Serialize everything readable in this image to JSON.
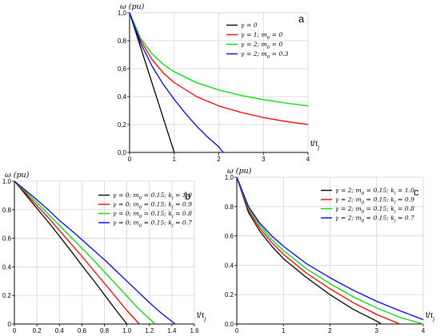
{
  "chart_data": [
    {
      "type": "line",
      "panel_label": "a",
      "ylabel": "ω (pu)",
      "xlabel": "t/τj",
      "xlim": [
        0,
        4
      ],
      "ylim": [
        0,
        1
      ],
      "xticks": [
        "0",
        "1",
        "2",
        "3",
        "4"
      ],
      "yticks": [
        "0,0",
        "0,2",
        "0,4",
        "0,6",
        "0,8",
        "1,0"
      ],
      "legend_position": "top-right",
      "grid": true,
      "series": [
        {
          "name": "γ = 0",
          "color": "#000000",
          "x": [
            0,
            1.0
          ],
          "y": [
            1,
            0
          ]
        },
        {
          "name": "γ = 1; m0 = 0",
          "color": "#ff0000",
          "x": [
            0,
            0.25,
            0.5,
            0.75,
            1,
            1.5,
            2,
            2.5,
            3,
            3.5,
            4
          ],
          "y": [
            1,
            0.8,
            0.667,
            0.571,
            0.5,
            0.4,
            0.333,
            0.286,
            0.25,
            0.222,
            0.2
          ]
        },
        {
          "name": "γ = 2; m0 = 0",
          "color": "#00dd00",
          "x": [
            0,
            0.25,
            0.5,
            0.75,
            1,
            1.5,
            2,
            2.5,
            3,
            3.5,
            4
          ],
          "y": [
            1,
            0.816,
            0.707,
            0.632,
            0.577,
            0.5,
            0.447,
            0.408,
            0.378,
            0.354,
            0.333
          ]
        },
        {
          "name": "γ = 2; m0 = 0.3",
          "color": "#0000ff",
          "x": [
            0,
            0.25,
            0.5,
            0.75,
            1,
            1.25,
            1.5,
            1.75,
            2,
            2.1
          ],
          "y": [
            1,
            0.78,
            0.62,
            0.49,
            0.38,
            0.28,
            0.19,
            0.11,
            0.04,
            0
          ]
        }
      ]
    },
    {
      "type": "line",
      "panel_label": "b",
      "ylabel": "ω (pu)",
      "xlabel": "t/τj",
      "xlim": [
        0,
        1.6
      ],
      "ylim": [
        0,
        1
      ],
      "xticks": [
        "0",
        "0.2",
        "0.4",
        "0.6",
        "0.8",
        "1.0",
        "1.2",
        "1.4",
        "1.6"
      ],
      "yticks": [
        "0",
        "0.2",
        "0.4",
        "0.6",
        "0.8",
        "1.0"
      ],
      "legend_position": "top-right",
      "grid": true,
      "series": [
        {
          "name": "γ = 0; m0 = 0.15; kl = 1.0",
          "color": "#000000",
          "x": [
            0,
            0.1,
            0.2,
            0.3,
            0.4,
            0.5,
            0.6,
            0.7,
            0.8,
            0.9,
            1.0
          ],
          "y": [
            1,
            0.905,
            0.81,
            0.715,
            0.615,
            0.515,
            0.41,
            0.31,
            0.205,
            0.1,
            0
          ]
        },
        {
          "name": "γ = 0; m0 = 0.15; kl = 0.9",
          "color": "#ff0000",
          "x": [
            0,
            0.1,
            0.2,
            0.3,
            0.4,
            0.5,
            0.6,
            0.7,
            0.8,
            0.9,
            1.0,
            1.11
          ],
          "y": [
            1,
            0.915,
            0.83,
            0.745,
            0.655,
            0.565,
            0.475,
            0.38,
            0.285,
            0.19,
            0.095,
            0
          ]
        },
        {
          "name": "γ = 0; m0 = 0.15; kl = 0.8",
          "color": "#00dd00",
          "x": [
            0,
            0.1,
            0.2,
            0.3,
            0.4,
            0.5,
            0.6,
            0.7,
            0.8,
            0.9,
            1.0,
            1.1,
            1.25
          ],
          "y": [
            1,
            0.925,
            0.85,
            0.77,
            0.69,
            0.61,
            0.53,
            0.45,
            0.365,
            0.28,
            0.195,
            0.11,
            0
          ]
        },
        {
          "name": "γ = 0; m0 = 0.15; kl = 0.7",
          "color": "#0000ff",
          "x": [
            0,
            0.1,
            0.2,
            0.3,
            0.4,
            0.5,
            0.6,
            0.7,
            0.8,
            0.9,
            1.0,
            1.1,
            1.2,
            1.3,
            1.43
          ],
          "y": [
            1,
            0.935,
            0.87,
            0.8,
            0.725,
            0.66,
            0.59,
            0.52,
            0.45,
            0.375,
            0.3,
            0.225,
            0.15,
            0.08,
            0
          ]
        }
      ]
    },
    {
      "type": "line",
      "panel_label": "c",
      "ylabel": "ω (pu)",
      "xlabel": "t/τj",
      "xlim": [
        0,
        4
      ],
      "ylim": [
        0,
        1
      ],
      "xticks": [
        "0",
        "1",
        "2",
        "3",
        "4"
      ],
      "yticks": [
        "0.0",
        "0.2",
        "0.4",
        "0.6",
        "0.8",
        "1.0"
      ],
      "legend_position": "top-right",
      "grid": true,
      "series": [
        {
          "name": "γ = 2; m0 = 0.15; kl = 1.0",
          "color": "#000000",
          "x": [
            0,
            0.25,
            0.5,
            0.75,
            1,
            1.5,
            2,
            2.5,
            3,
            3.1
          ],
          "y": [
            1,
            0.76,
            0.63,
            0.53,
            0.445,
            0.315,
            0.2,
            0.1,
            0.02,
            0
          ]
        },
        {
          "name": "γ = 2; m0 = 0.15; kl = 0.9",
          "color": "#ff0000",
          "x": [
            0,
            0.25,
            0.5,
            0.75,
            1,
            1.5,
            2,
            2.5,
            3,
            3.5
          ],
          "y": [
            1,
            0.775,
            0.65,
            0.555,
            0.475,
            0.345,
            0.24,
            0.145,
            0.065,
            0
          ]
        },
        {
          "name": "γ = 2; m0 = 0.15; kl = 0.8",
          "color": "#00dd00",
          "x": [
            0,
            0.25,
            0.5,
            0.75,
            1,
            1.5,
            2,
            2.5,
            3,
            3.5,
            4
          ],
          "y": [
            1,
            0.79,
            0.67,
            0.575,
            0.5,
            0.375,
            0.275,
            0.185,
            0.11,
            0.045,
            0
          ]
        },
        {
          "name": "γ = 2; m0 = 0.15; kl = 0.7",
          "color": "#0000ff",
          "x": [
            0,
            0.25,
            0.5,
            0.75,
            1,
            1.5,
            2,
            2.5,
            3,
            3.5,
            4
          ],
          "y": [
            1,
            0.8,
            0.685,
            0.6,
            0.53,
            0.41,
            0.315,
            0.23,
            0.155,
            0.09,
            0.03
          ]
        }
      ]
    }
  ]
}
